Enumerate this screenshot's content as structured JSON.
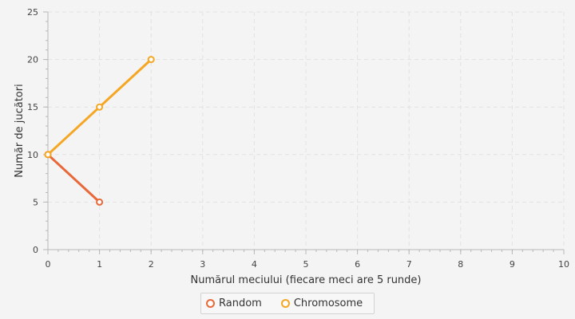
{
  "colors": {
    "background": "#f4f4f4",
    "grid": "#e2e2e2",
    "axis": "#b8b8b8",
    "tick_text": "#444444"
  },
  "chart_data": {
    "type": "line",
    "xlabel": "Numărul meciului (fiecare meci are 5 runde)",
    "ylabel": "Număr de jucători",
    "xlim": [
      0,
      10
    ],
    "ylim": [
      0,
      25
    ],
    "x_ticks": [
      0,
      1,
      2,
      3,
      4,
      5,
      6,
      7,
      8,
      9,
      10
    ],
    "y_ticks": [
      0,
      5,
      10,
      15,
      20,
      25
    ],
    "grid": true,
    "legend_position": "bottom-center",
    "series": [
      {
        "name": "Random",
        "color": "#e9683a",
        "x": [
          0,
          1
        ],
        "y": [
          10,
          5
        ]
      },
      {
        "name": "Chromosome",
        "color": "#f5a623",
        "x": [
          0,
          1,
          2
        ],
        "y": [
          10,
          15,
          20
        ]
      }
    ]
  }
}
